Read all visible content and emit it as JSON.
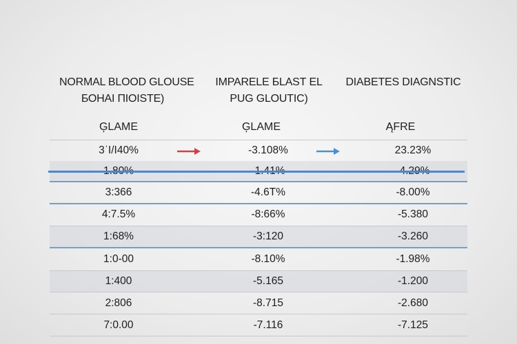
{
  "headers": [
    {
      "line1": "NORMAL BLOOD  GLOUSE",
      "line2": "БОНАІ ПІОІSТЕ)"
    },
    {
      "line1": "IMPARELE БLASТ ЕL",
      "line2": "PUG GLOUTIC)"
    },
    {
      "line1": "DIABETES DIAGNSTIC",
      "line2": ""
    }
  ],
  "subheaders": [
    "ĢLAME",
    "ĢLAME",
    "ĄFRE"
  ],
  "rows": [
    {
      "c1": "3ˈI/Ι40%",
      "c2": "-3.108%",
      "c3": "23.23%"
    },
    {
      "c1": "1.80%",
      "c2": "-1.41%",
      "c3": "-4.29%"
    },
    {
      "c1": "3:366",
      "c2": "-4.6T%",
      "c3": "-8.00%"
    },
    {
      "c1": "4:7.5%",
      "c2": "-8:66%",
      "c3": "-5.380"
    },
    {
      "c1": "1:68%",
      "c2": "-3:120",
      "c3": "-3.260"
    },
    {
      "c1": "1:0-00",
      "c2": "-8.10%",
      "c3": "-1.98%"
    },
    {
      "c1": "1:400",
      "c2": "-5.165",
      "c3": "-1.200"
    },
    {
      "c1": "2:806",
      "c2": "-8.715",
      "c3": "-2.680"
    },
    {
      "c1": "7:0.00",
      "c2": "-7.116",
      "c3": "-7.125"
    }
  ],
  "colors": {
    "arrow_red": "#d0404a",
    "arrow_blue": "#4a90d0",
    "rule_blue": "#4a87cf",
    "row_shade": "#d5d9de"
  },
  "icons": [
    "right-arrow-icon",
    "right-arrow-icon"
  ]
}
